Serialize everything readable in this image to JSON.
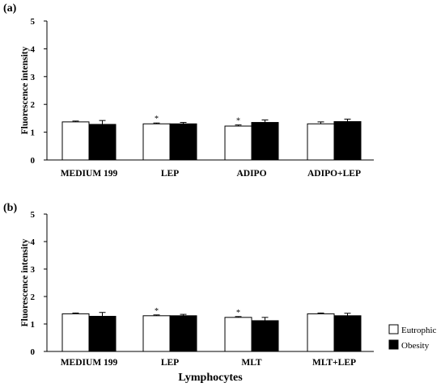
{
  "chart_data": [
    {
      "type": "bar",
      "panel_label": "(a)",
      "ylabel": "Fluorescence intensity",
      "xlabel": "",
      "ylim": [
        0,
        5
      ],
      "yticks": [
        "0",
        "1",
        "2",
        "3",
        "4",
        "5"
      ],
      "categories": [
        "MEDIUM 199",
        "LEP",
        "ADIPO",
        "ADIPO+LEP"
      ],
      "series": [
        {
          "name": "Eutrophic",
          "values": [
            1.37,
            1.3,
            1.22,
            1.3
          ],
          "errors": [
            0.03,
            0.03,
            0.04,
            0.07
          ]
        },
        {
          "name": "Obesity",
          "values": [
            1.28,
            1.3,
            1.35,
            1.38
          ],
          "errors": [
            0.14,
            0.05,
            0.09,
            0.09
          ]
        }
      ],
      "annotations": [
        {
          "category": "LEP",
          "series": "Eutrophic",
          "text": "*"
        },
        {
          "category": "ADIPO",
          "series": "Eutrophic",
          "text": "*"
        }
      ]
    },
    {
      "type": "bar",
      "panel_label": "(b)",
      "ylabel": "Fluorescence intensity",
      "xlabel": "Lymphocytes",
      "ylim": [
        0,
        5
      ],
      "yticks": [
        "0",
        "1",
        "2",
        "3",
        "4",
        "5"
      ],
      "categories": [
        "MEDIUM 199",
        "LEP",
        "MLT",
        "MLT+LEP"
      ],
      "series": [
        {
          "name": "Eutrophic",
          "values": [
            1.37,
            1.3,
            1.24,
            1.37
          ],
          "errors": [
            0.03,
            0.03,
            0.03,
            0.03
          ]
        },
        {
          "name": "Obesity",
          "values": [
            1.28,
            1.3,
            1.12,
            1.3
          ],
          "errors": [
            0.14,
            0.05,
            0.12,
            0.09
          ]
        }
      ],
      "annotations": [
        {
          "category": "LEP",
          "series": "Eutrophic",
          "text": "*"
        },
        {
          "category": "MLT",
          "series": "Eutrophic",
          "text": "*"
        }
      ],
      "legend": {
        "placement": "right",
        "entries": [
          "Eutrophic",
          "Obesity"
        ]
      }
    }
  ],
  "colors": {
    "Eutrophic": "#ffffff",
    "Obesity": "#000000",
    "axis": "#000000"
  }
}
